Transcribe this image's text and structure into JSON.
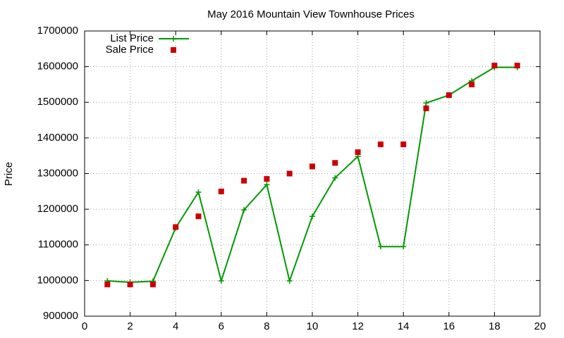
{
  "chart_data": {
    "type": "line",
    "title": "May 2016 Mountain View Townhouse Prices",
    "y_label": "Price",
    "x": [
      1,
      2,
      3,
      4,
      5,
      6,
      7,
      8,
      9,
      10,
      11,
      12,
      13,
      14,
      15,
      16,
      17,
      18,
      19
    ],
    "series": [
      {
        "name": "List Price",
        "color": "#009900",
        "line": true,
        "marker": "plus",
        "values": [
          999000,
          995000,
          998000,
          1148000,
          1248000,
          999000,
          1198000,
          1269000,
          999000,
          1180000,
          1288000,
          1348000,
          1095000,
          1095000,
          1498000,
          1520000,
          1560000,
          1598000,
          1598000
        ]
      },
      {
        "name": "Sale Price",
        "color": "#cc0000",
        "line": false,
        "marker": "square",
        "values": [
          989000,
          989000,
          989000,
          1150000,
          1180000,
          1250000,
          1280000,
          1285000,
          1300000,
          1320000,
          1330000,
          1360000,
          1382000,
          1382000,
          1483000,
          1520000,
          1550000,
          1603000,
          1603000
        ]
      }
    ],
    "xlim": [
      0,
      20
    ],
    "xticks": [
      0,
      2,
      4,
      6,
      8,
      10,
      12,
      14,
      16,
      18,
      20
    ],
    "ylim": [
      900000,
      1700000
    ],
    "yticks": [
      900000,
      1000000,
      1100000,
      1200000,
      1300000,
      1400000,
      1500000,
      1600000,
      1700000
    ],
    "grid": true,
    "legend": "top-left"
  }
}
